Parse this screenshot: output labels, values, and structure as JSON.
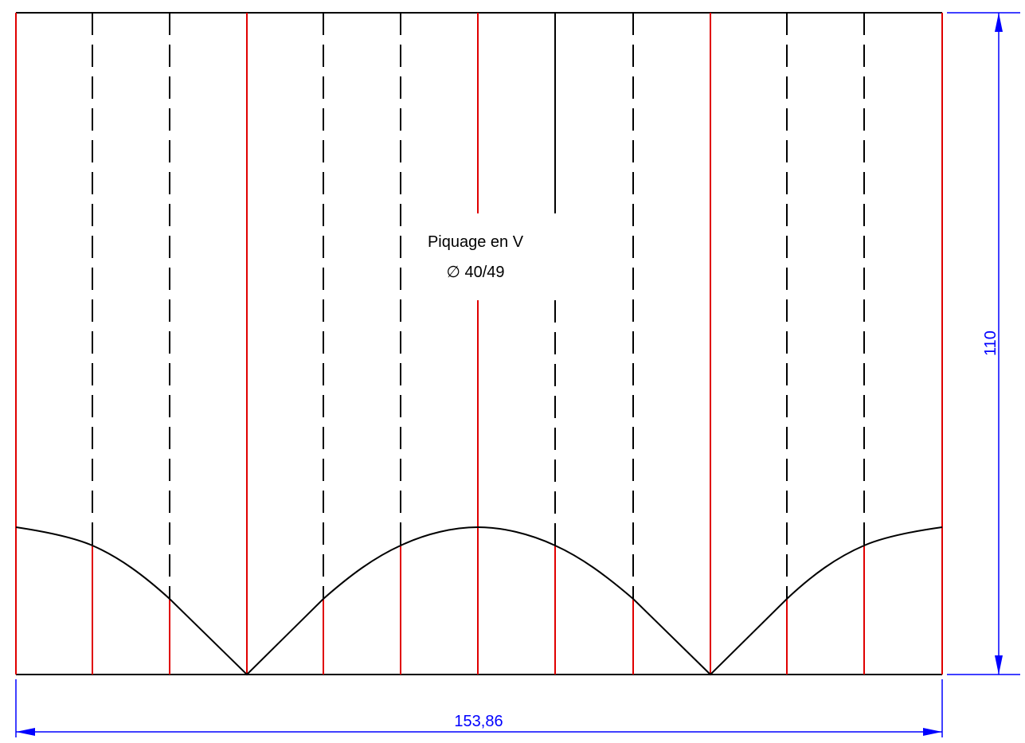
{
  "label": {
    "line1": "Piquage en V",
    "line2": "∅ 40/49"
  },
  "dimensions": {
    "width": "153,86",
    "height": "110"
  },
  "colors": {
    "outline": "#000000",
    "cut_line": "#ff0000",
    "dimension": "#0000ff",
    "background": "#ffffff"
  }
}
